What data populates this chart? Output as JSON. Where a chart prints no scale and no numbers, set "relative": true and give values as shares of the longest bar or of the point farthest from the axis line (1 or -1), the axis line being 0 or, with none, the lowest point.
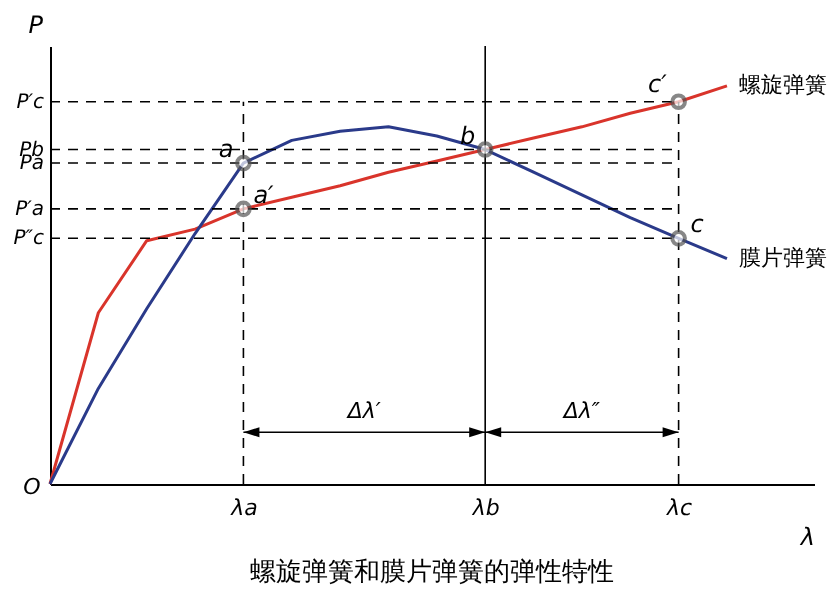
{
  "chart_data": {
    "type": "line",
    "relative": true,
    "title": "螺旋弹簧和膜片弹簧的弹性特性",
    "xlabel": "λ",
    "ylabel": "P",
    "categories": [
      null,
      null,
      null,
      null,
      "λa",
      null,
      null,
      null,
      null,
      "λb",
      null,
      null,
      null,
      "λc",
      null
    ],
    "series": [
      {
        "name": "螺旋弹簧",
        "color": "#d9342b",
        "values": [
          0,
          0.43,
          0.611,
          0.64,
          0.691,
          0.72,
          0.749,
          0.783,
          0.811,
          0.84,
          0.869,
          0.897,
          0.931,
          0.96,
          1
        ]
      },
      {
        "name": "膜片弹簧",
        "color": "#2a3a8a",
        "values": [
          0,
          0.24,
          0.44,
          0.629,
          0.806,
          0.863,
          0.886,
          0.897,
          0.874,
          0.84,
          0.783,
          0.726,
          0.669,
          0.617,
          0.566
        ]
      }
    ],
    "ref_lines": [
      {
        "axis": "y",
        "value": 0.96,
        "label": "P′c",
        "line_style": "dashed"
      },
      {
        "axis": "y",
        "value": 0.84,
        "label": "Pb",
        "line_style": "dashed"
      },
      {
        "axis": "y",
        "value": 0.806,
        "label": "Pa",
        "line_style": "dashed"
      },
      {
        "axis": "y",
        "value": 0.691,
        "label": "P′a",
        "line_style": "dashed"
      },
      {
        "axis": "y",
        "value": 0.617,
        "label": "P″c",
        "line_style": "dashed"
      },
      {
        "axis": "x",
        "value": "λa",
        "line_style": "dashed"
      },
      {
        "axis": "x",
        "value": "λb",
        "line_style": "solid"
      },
      {
        "axis": "x",
        "value": "λc",
        "line_style": "dashed"
      }
    ],
    "annotations": [
      {
        "text": "a",
        "x": "λa",
        "y": 0.806
      },
      {
        "text": "a′",
        "x": "λa",
        "y": 0.691
      },
      {
        "text": "b",
        "x": "λb",
        "y": 0.84
      },
      {
        "text": "c′",
        "x": "λc",
        "y": 0.96
      },
      {
        "text": "c",
        "x": "λc",
        "y": 0.617
      },
      "Δλ′",
      "Δλ″",
      "O"
    ]
  }
}
